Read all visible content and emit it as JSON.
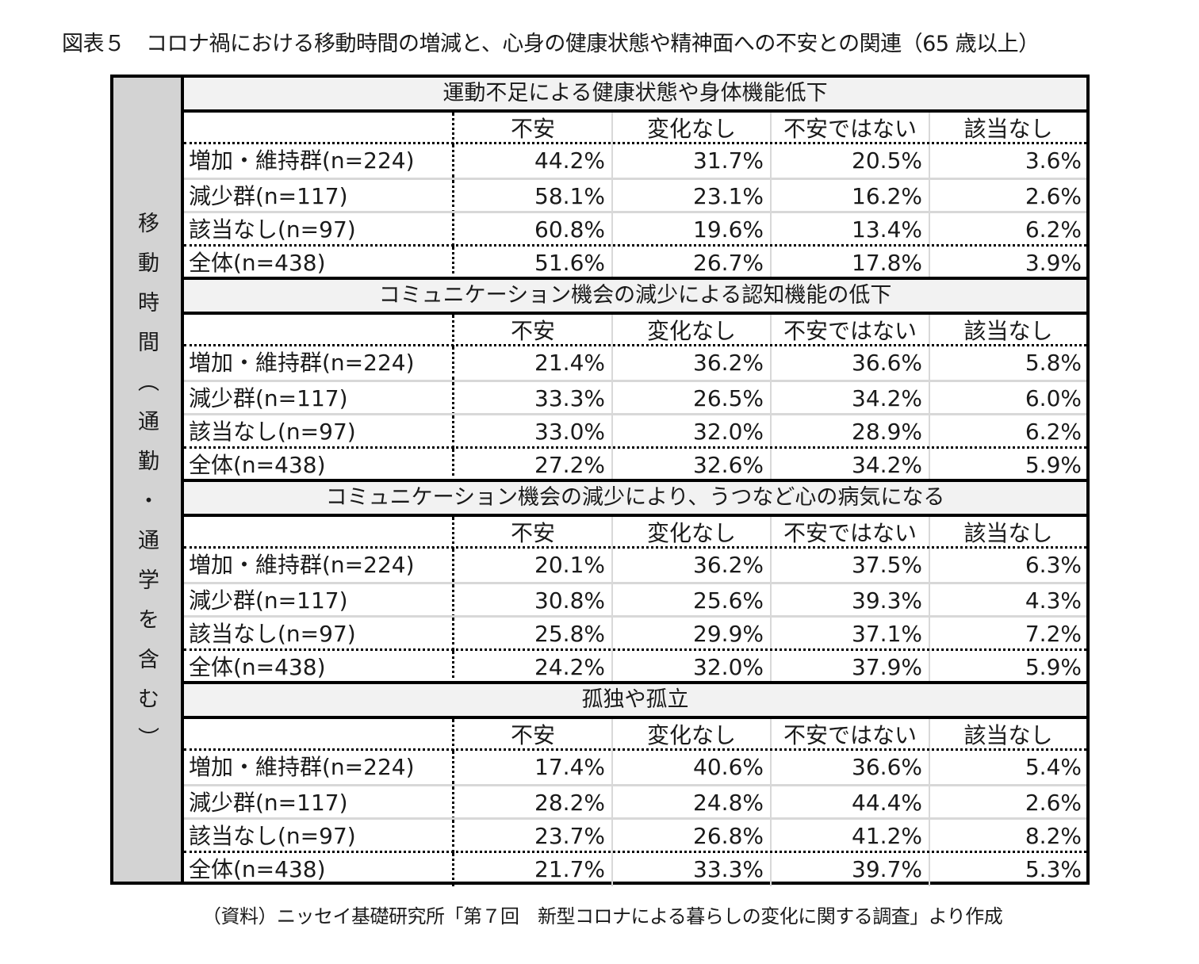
{
  "title": "図表５　コロナ禍における移動時間の増減と、心身の健康状態や精神面への不安との関連（65 歳以上）",
  "side_label": [
    "移",
    "動",
    "時",
    "間",
    "︵",
    "通",
    "勤",
    "・",
    "通",
    "学",
    "を",
    "含",
    "む",
    "︶"
  ],
  "columns": [
    "不安",
    "変化なし",
    "不安ではない",
    "該当なし"
  ],
  "sections": [
    {
      "title": "運動不足による健康状態や身体機能低下",
      "rows": [
        {
          "label": "増加・維持群(n=224)",
          "values": [
            "44.2%",
            "31.7%",
            "20.5%",
            "3.6%"
          ]
        },
        {
          "label": "減少群(n=117)",
          "values": [
            "58.1%",
            "23.1%",
            "16.2%",
            "2.6%"
          ]
        },
        {
          "label": "該当なし(n=97)",
          "values": [
            "60.8%",
            "19.6%",
            "13.4%",
            "6.2%"
          ]
        },
        {
          "label": "全体(n=438)",
          "values": [
            "51.6%",
            "26.7%",
            "17.8%",
            "3.9%"
          ]
        }
      ]
    },
    {
      "title": "コミュニケーション機会の減少による認知機能の低下",
      "rows": [
        {
          "label": "増加・維持群(n=224)",
          "values": [
            "21.4%",
            "36.2%",
            "36.6%",
            "5.8%"
          ]
        },
        {
          "label": "減少群(n=117)",
          "values": [
            "33.3%",
            "26.5%",
            "34.2%",
            "6.0%"
          ]
        },
        {
          "label": "該当なし(n=97)",
          "values": [
            "33.0%",
            "32.0%",
            "28.9%",
            "6.2%"
          ]
        },
        {
          "label": "全体(n=438)",
          "values": [
            "27.2%",
            "32.6%",
            "34.2%",
            "5.9%"
          ]
        }
      ]
    },
    {
      "title": "コミュニケーション機会の減少により、うつなど心の病気になる",
      "rows": [
        {
          "label": "増加・維持群(n=224)",
          "values": [
            "20.1%",
            "36.2%",
            "37.5%",
            "6.3%"
          ]
        },
        {
          "label": "減少群(n=117)",
          "values": [
            "30.8%",
            "25.6%",
            "39.3%",
            "4.3%"
          ]
        },
        {
          "label": "該当なし(n=97)",
          "values": [
            "25.8%",
            "29.9%",
            "37.1%",
            "7.2%"
          ]
        },
        {
          "label": "全体(n=438)",
          "values": [
            "24.2%",
            "32.0%",
            "37.9%",
            "5.9%"
          ]
        }
      ]
    },
    {
      "title": "孤独や孤立",
      "rows": [
        {
          "label": "増加・維持群(n=224)",
          "values": [
            "17.4%",
            "40.6%",
            "36.6%",
            "5.4%"
          ]
        },
        {
          "label": "減少群(n=117)",
          "values": [
            "28.2%",
            "24.8%",
            "44.4%",
            "2.6%"
          ]
        },
        {
          "label": "該当なし(n=97)",
          "values": [
            "23.7%",
            "26.8%",
            "41.2%",
            "8.2%"
          ]
        },
        {
          "label": "全体(n=438)",
          "values": [
            "21.7%",
            "33.3%",
            "39.7%",
            "5.3%"
          ]
        }
      ]
    }
  ],
  "source": "（資料）ニッセイ基礎研究所「第７回　新型コロナによる暮らしの変化に関する調査」より作成"
}
